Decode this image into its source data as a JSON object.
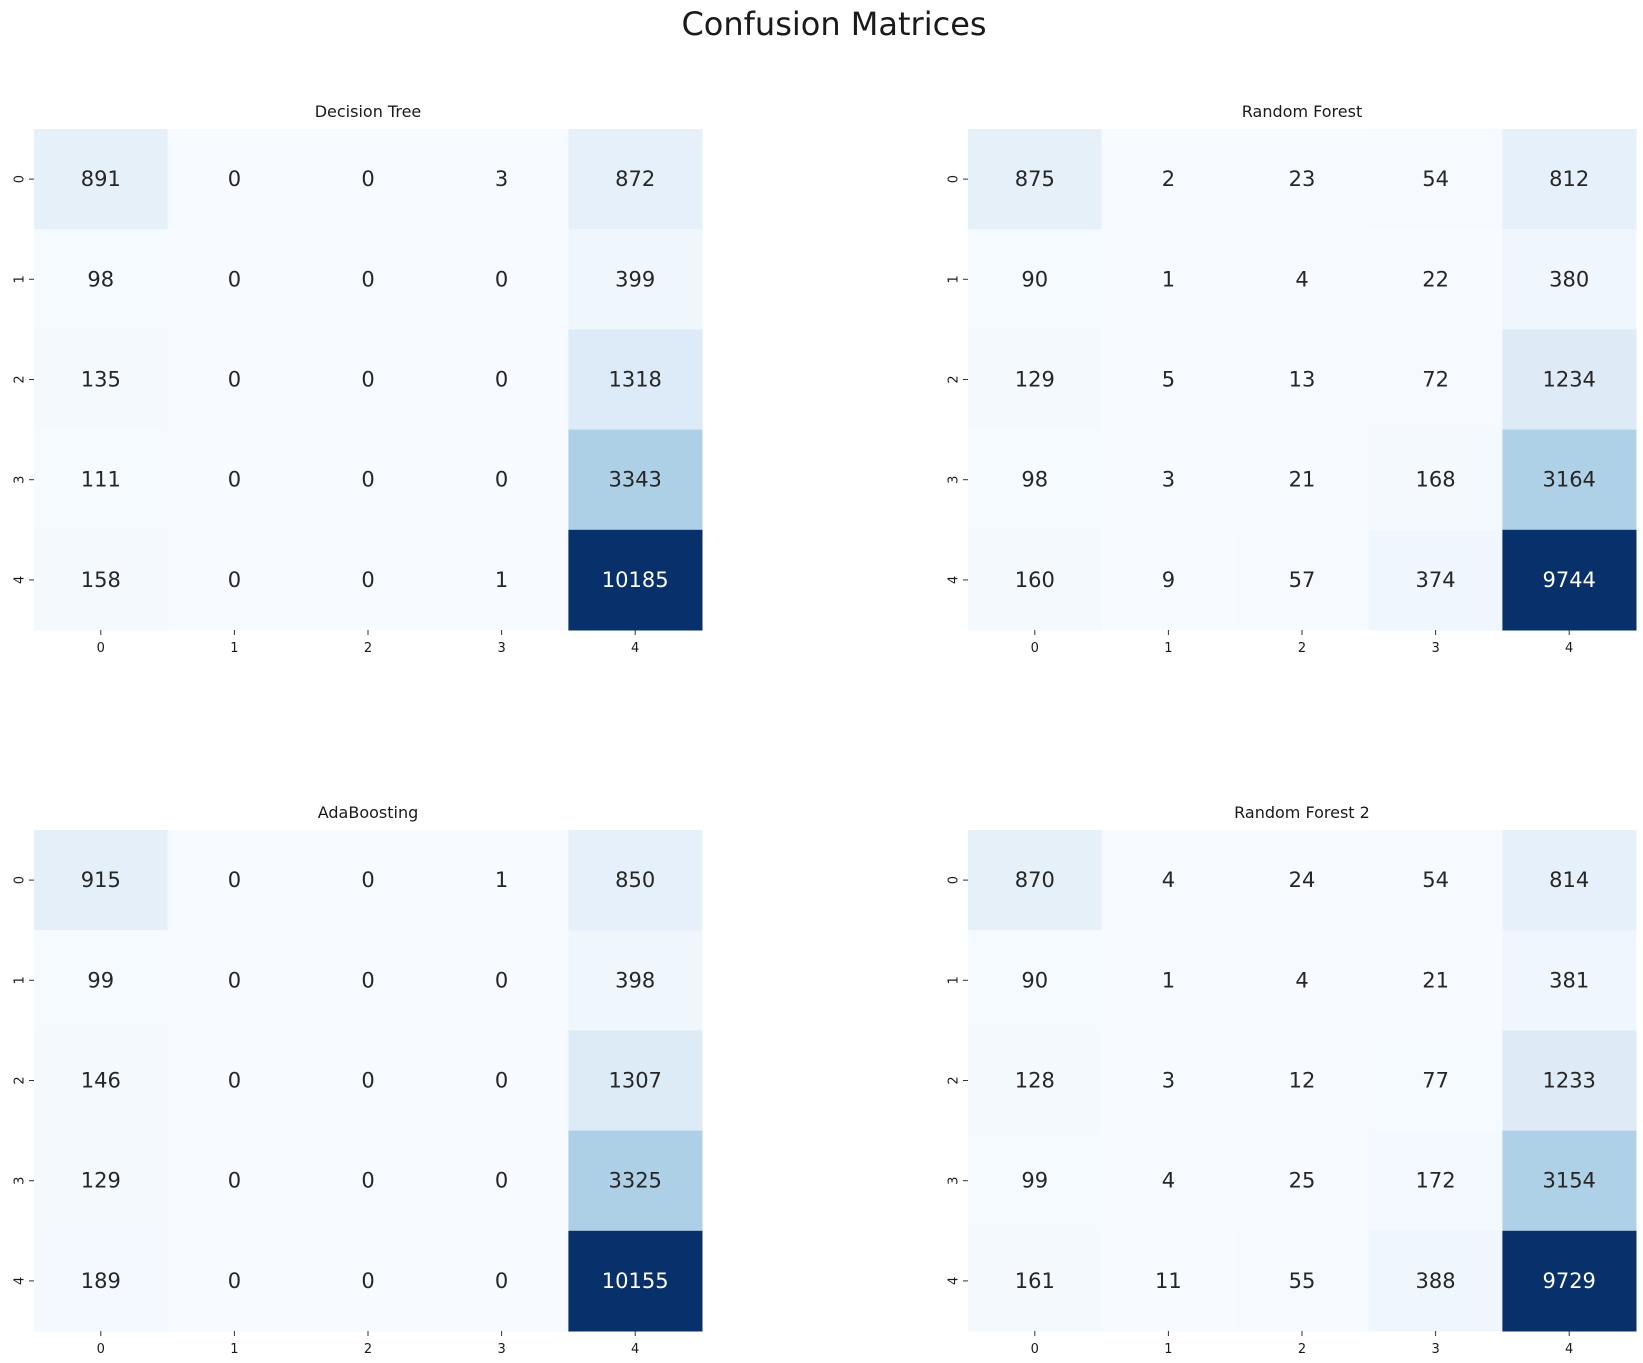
{
  "figure_title": "Confusion Matrices",
  "chart_data": [
    {
      "type": "heatmap",
      "title": "Decision Tree",
      "x_ticks": [
        "0",
        "1",
        "2",
        "3",
        "4"
      ],
      "y_ticks": [
        "0",
        "1",
        "2",
        "3",
        "4"
      ],
      "values": [
        [
          891,
          0,
          0,
          3,
          872
        ],
        [
          98,
          0,
          0,
          0,
          399
        ],
        [
          135,
          0,
          0,
          0,
          1318
        ],
        [
          111,
          0,
          0,
          0,
          3343
        ],
        [
          158,
          0,
          0,
          1,
          10185
        ]
      ],
      "colormap": "Blues"
    },
    {
      "type": "heatmap",
      "title": "Random Forest",
      "x_ticks": [
        "0",
        "1",
        "2",
        "3",
        "4"
      ],
      "y_ticks": [
        "0",
        "1",
        "2",
        "3",
        "4"
      ],
      "values": [
        [
          875,
          2,
          23,
          54,
          812
        ],
        [
          90,
          1,
          4,
          22,
          380
        ],
        [
          129,
          5,
          13,
          72,
          1234
        ],
        [
          98,
          3,
          21,
          168,
          3164
        ],
        [
          160,
          9,
          57,
          374,
          9744
        ]
      ],
      "colormap": "Blues"
    },
    {
      "type": "heatmap",
      "title": "AdaBoosting",
      "x_ticks": [
        "0",
        "1",
        "2",
        "3",
        "4"
      ],
      "y_ticks": [
        "0",
        "1",
        "2",
        "3",
        "4"
      ],
      "values": [
        [
          915,
          0,
          0,
          1,
          850
        ],
        [
          99,
          0,
          0,
          0,
          398
        ],
        [
          146,
          0,
          0,
          0,
          1307
        ],
        [
          129,
          0,
          0,
          0,
          3325
        ],
        [
          189,
          0,
          0,
          0,
          10155
        ]
      ],
      "colormap": "Blues"
    },
    {
      "type": "heatmap",
      "title": "Random Forest 2",
      "x_ticks": [
        "0",
        "1",
        "2",
        "3",
        "4"
      ],
      "y_ticks": [
        "0",
        "1",
        "2",
        "3",
        "4"
      ],
      "values": [
        [
          870,
          4,
          24,
          54,
          814
        ],
        [
          90,
          1,
          4,
          21,
          381
        ],
        [
          128,
          3,
          12,
          77,
          1233
        ],
        [
          99,
          4,
          25,
          172,
          3154
        ],
        [
          161,
          11,
          55,
          388,
          9729
        ]
      ],
      "colormap": "Blues"
    }
  ]
}
